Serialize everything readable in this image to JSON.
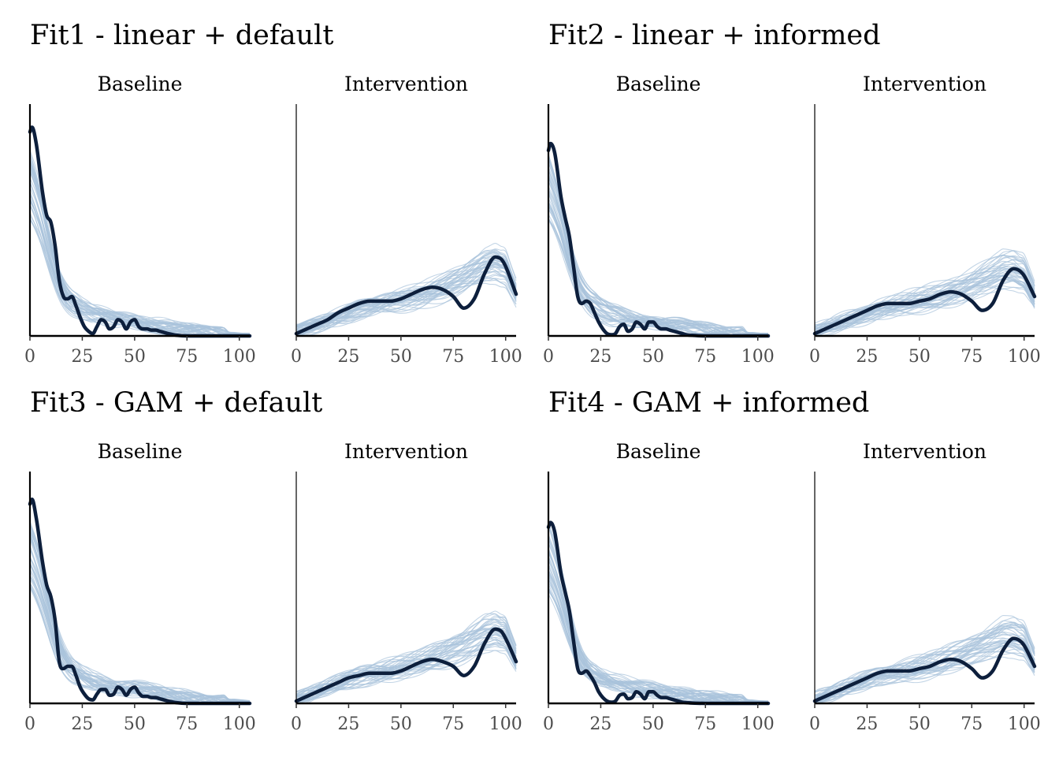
{
  "chart_data": [
    {
      "type": "line",
      "title": "Fit1 - linear + default",
      "panels": [
        {
          "label": "Baseline",
          "xlim": [
            0,
            105
          ],
          "ylim": [
            0,
            1
          ],
          "xticks": [
            "0",
            "25",
            "50",
            "75",
            "100"
          ],
          "observed": {
            "x": [
              0,
              1,
              3,
              6,
              8,
              10,
              12,
              14,
              16,
              18,
              20,
              22,
              24,
              26,
              28,
              30,
              32,
              34,
              36,
              38,
              40,
              42,
              44,
              46,
              48,
              50,
              52,
              54,
              56,
              58,
              60,
              62,
              64,
              66,
              70,
              75,
              80,
              85,
              90,
              95,
              100,
              105
            ],
            "y": [
              0.88,
              0.9,
              0.83,
              0.62,
              0.52,
              0.49,
              0.39,
              0.24,
              0.17,
              0.16,
              0.17,
              0.13,
              0.08,
              0.04,
              0.02,
              0.01,
              0.04,
              0.07,
              0.06,
              0.03,
              0.04,
              0.07,
              0.06,
              0.03,
              0.06,
              0.07,
              0.04,
              0.03,
              0.03,
              0.025,
              0.025,
              0.02,
              0.015,
              0.01,
              0.003,
              0.0,
              0.0,
              0.0,
              0.0,
              0.0,
              0.0,
              0.0
            ]
          },
          "replicates": {
            "x": [
              0,
              2,
              5,
              8,
              11,
              14,
              17,
              20,
              25,
              30,
              40,
              50,
              60,
              70,
              80,
              90,
              100,
              105
            ],
            "y": [
              0.62,
              0.58,
              0.5,
              0.4,
              0.3,
              0.22,
              0.17,
              0.14,
              0.11,
              0.09,
              0.07,
              0.06,
              0.045,
              0.03,
              0.02,
              0.012,
              0.006,
              0.003
            ]
          }
        },
        {
          "label": "Intervention",
          "xlim": [
            0,
            105
          ],
          "ylim": [
            0,
            1
          ],
          "xticks": [
            "0",
            "25",
            "50",
            "75",
            "100"
          ],
          "observed": {
            "x": [
              0,
              5,
              10,
              15,
              20,
              25,
              30,
              35,
              40,
              45,
              50,
              55,
              60,
              65,
              70,
              75,
              80,
              85,
              90,
              95,
              98,
              100,
              105
            ],
            "y": [
              0.01,
              0.03,
              0.05,
              0.07,
              0.1,
              0.12,
              0.14,
              0.15,
              0.15,
              0.15,
              0.16,
              0.18,
              0.2,
              0.21,
              0.2,
              0.17,
              0.12,
              0.16,
              0.27,
              0.34,
              0.33,
              0.3,
              0.18
            ]
          },
          "replicates": {
            "x": [
              0,
              10,
              20,
              30,
              40,
              50,
              60,
              70,
              80,
              90,
              95,
              100,
              105
            ],
            "y": [
              0.02,
              0.05,
              0.08,
              0.11,
              0.13,
              0.15,
              0.17,
              0.2,
              0.24,
              0.29,
              0.3,
              0.28,
              0.18
            ]
          }
        }
      ]
    },
    {
      "type": "line",
      "title": "Fit2 - linear + informed",
      "panels": [
        {
          "label": "Baseline",
          "xlim": [
            0,
            105
          ],
          "ylim": [
            0,
            1
          ],
          "xticks": [
            "0",
            "25",
            "50",
            "75",
            "100"
          ],
          "observed": {
            "x": [
              0,
              1,
              3,
              6,
              8,
              10,
              12,
              14,
              16,
              18,
              20,
              22,
              24,
              26,
              28,
              30,
              32,
              34,
              36,
              38,
              40,
              42,
              44,
              46,
              48,
              50,
              52,
              54,
              56,
              58,
              60,
              62,
              64,
              66,
              70,
              75,
              80,
              85,
              90,
              95,
              100,
              105
            ],
            "y": [
              0.8,
              0.83,
              0.79,
              0.6,
              0.51,
              0.43,
              0.3,
              0.17,
              0.14,
              0.15,
              0.14,
              0.1,
              0.06,
              0.03,
              0.01,
              0.005,
              0.01,
              0.04,
              0.05,
              0.02,
              0.03,
              0.06,
              0.05,
              0.03,
              0.06,
              0.06,
              0.04,
              0.03,
              0.03,
              0.025,
              0.02,
              0.015,
              0.01,
              0.005,
              0.002,
              0.0,
              0.0,
              0.0,
              0.0,
              0.0,
              0.0,
              0.0
            ]
          },
          "replicates": {
            "x": [
              0,
              2,
              5,
              8,
              11,
              14,
              17,
              20,
              25,
              30,
              40,
              50,
              60,
              70,
              80,
              90,
              100,
              105
            ],
            "y": [
              0.62,
              0.58,
              0.5,
              0.4,
              0.3,
              0.22,
              0.17,
              0.14,
              0.11,
              0.09,
              0.07,
              0.06,
              0.045,
              0.03,
              0.02,
              0.012,
              0.006,
              0.003
            ]
          }
        },
        {
          "label": "Intervention",
          "xlim": [
            0,
            105
          ],
          "ylim": [
            0,
            1
          ],
          "xticks": [
            "0",
            "25",
            "50",
            "75",
            "100"
          ],
          "observed": {
            "x": [
              0,
              5,
              10,
              15,
              20,
              25,
              30,
              35,
              40,
              45,
              50,
              55,
              60,
              65,
              70,
              75,
              80,
              85,
              90,
              95,
              98,
              100,
              105
            ],
            "y": [
              0.01,
              0.03,
              0.05,
              0.07,
              0.09,
              0.11,
              0.13,
              0.14,
              0.14,
              0.14,
              0.15,
              0.16,
              0.18,
              0.19,
              0.18,
              0.15,
              0.11,
              0.14,
              0.24,
              0.29,
              0.28,
              0.26,
              0.17
            ]
          },
          "replicates": {
            "x": [
              0,
              10,
              20,
              30,
              40,
              50,
              60,
              70,
              80,
              90,
              95,
              100,
              105
            ],
            "y": [
              0.02,
              0.05,
              0.08,
              0.11,
              0.13,
              0.15,
              0.17,
              0.2,
              0.24,
              0.28,
              0.28,
              0.26,
              0.17
            ]
          }
        }
      ]
    },
    {
      "type": "line",
      "title": "Fit3 - GAM + default",
      "panels": [
        {
          "label": "Baseline",
          "xlim": [
            0,
            105
          ],
          "ylim": [
            0,
            1
          ],
          "xticks": [
            "0",
            "25",
            "50",
            "75",
            "100"
          ],
          "observed": {
            "x": [
              0,
              1,
              3,
              6,
              8,
              10,
              12,
              14,
              16,
              18,
              20,
              22,
              24,
              26,
              28,
              30,
              32,
              34,
              36,
              38,
              40,
              42,
              44,
              46,
              48,
              50,
              52,
              54,
              56,
              58,
              60,
              62,
              64,
              66,
              70,
              75,
              80,
              85,
              90,
              95,
              100,
              105
            ],
            "y": [
              0.86,
              0.88,
              0.8,
              0.61,
              0.51,
              0.46,
              0.36,
              0.18,
              0.15,
              0.16,
              0.16,
              0.12,
              0.07,
              0.04,
              0.02,
              0.015,
              0.04,
              0.06,
              0.06,
              0.035,
              0.04,
              0.07,
              0.06,
              0.035,
              0.06,
              0.07,
              0.045,
              0.03,
              0.03,
              0.025,
              0.025,
              0.02,
              0.015,
              0.01,
              0.003,
              0.0,
              0.0,
              0.0,
              0.0,
              0.0,
              0.0,
              0.0
            ]
          },
          "replicates": {
            "x": [
              0,
              2,
              5,
              8,
              11,
              14,
              17,
              20,
              25,
              30,
              40,
              50,
              60,
              70,
              80,
              90,
              100,
              105
            ],
            "y": [
              0.62,
              0.58,
              0.5,
              0.4,
              0.3,
              0.22,
              0.17,
              0.14,
              0.11,
              0.09,
              0.07,
              0.06,
              0.045,
              0.03,
              0.02,
              0.012,
              0.006,
              0.003
            ]
          }
        },
        {
          "label": "Intervention",
          "xlim": [
            0,
            105
          ],
          "ylim": [
            0,
            1
          ],
          "xticks": [
            "0",
            "25",
            "50",
            "75",
            "100"
          ],
          "observed": {
            "x": [
              0,
              5,
              10,
              15,
              20,
              25,
              30,
              35,
              40,
              45,
              50,
              55,
              60,
              65,
              70,
              75,
              80,
              85,
              90,
              95,
              98,
              100,
              105
            ],
            "y": [
              0.01,
              0.03,
              0.05,
              0.07,
              0.09,
              0.11,
              0.12,
              0.13,
              0.13,
              0.13,
              0.14,
              0.16,
              0.18,
              0.19,
              0.18,
              0.16,
              0.12,
              0.16,
              0.26,
              0.32,
              0.31,
              0.28,
              0.18
            ]
          },
          "replicates": {
            "x": [
              0,
              10,
              20,
              30,
              40,
              50,
              60,
              70,
              80,
              90,
              95,
              100,
              105
            ],
            "y": [
              0.02,
              0.05,
              0.08,
              0.11,
              0.13,
              0.15,
              0.17,
              0.2,
              0.24,
              0.29,
              0.3,
              0.28,
              0.18
            ]
          }
        }
      ]
    },
    {
      "type": "line",
      "title": "Fit4 - GAM + informed",
      "panels": [
        {
          "label": "Baseline",
          "xlim": [
            0,
            105
          ],
          "ylim": [
            0,
            1
          ],
          "xticks": [
            "0",
            "25",
            "50",
            "75",
            "100"
          ],
          "observed": {
            "x": [
              0,
              1,
              3,
              6,
              8,
              10,
              12,
              14,
              16,
              18,
              20,
              22,
              24,
              26,
              28,
              30,
              32,
              34,
              36,
              38,
              40,
              42,
              44,
              46,
              48,
              50,
              52,
              54,
              56,
              58,
              60,
              62,
              64,
              66,
              70,
              75,
              80,
              85,
              90,
              95,
              100,
              105
            ],
            "y": [
              0.76,
              0.78,
              0.74,
              0.56,
              0.48,
              0.4,
              0.27,
              0.15,
              0.13,
              0.14,
              0.12,
              0.09,
              0.05,
              0.025,
              0.01,
              0.005,
              0.01,
              0.035,
              0.04,
              0.02,
              0.025,
              0.05,
              0.04,
              0.02,
              0.05,
              0.05,
              0.035,
              0.025,
              0.025,
              0.02,
              0.015,
              0.01,
              0.005,
              0.003,
              0.001,
              0.0,
              0.0,
              0.0,
              0.0,
              0.0,
              0.0,
              0.0
            ]
          },
          "replicates": {
            "x": [
              0,
              2,
              5,
              8,
              11,
              14,
              17,
              20,
              25,
              30,
              40,
              50,
              60,
              70,
              80,
              90,
              100,
              105
            ],
            "y": [
              0.62,
              0.58,
              0.5,
              0.4,
              0.3,
              0.22,
              0.17,
              0.14,
              0.11,
              0.09,
              0.07,
              0.06,
              0.045,
              0.03,
              0.02,
              0.012,
              0.006,
              0.003
            ]
          }
        },
        {
          "label": "Intervention",
          "xlim": [
            0,
            105
          ],
          "ylim": [
            0,
            1
          ],
          "xticks": [
            "0",
            "25",
            "50",
            "75",
            "100"
          ],
          "observed": {
            "x": [
              0,
              5,
              10,
              15,
              20,
              25,
              30,
              35,
              40,
              45,
              50,
              55,
              60,
              65,
              70,
              75,
              80,
              85,
              90,
              95,
              98,
              100,
              105
            ],
            "y": [
              0.01,
              0.03,
              0.05,
              0.07,
              0.09,
              0.11,
              0.13,
              0.14,
              0.14,
              0.14,
              0.15,
              0.16,
              0.18,
              0.19,
              0.18,
              0.15,
              0.11,
              0.14,
              0.23,
              0.28,
              0.27,
              0.25,
              0.16
            ]
          },
          "replicates": {
            "x": [
              0,
              10,
              20,
              30,
              40,
              50,
              60,
              70,
              80,
              90,
              95,
              100,
              105
            ],
            "y": [
              0.02,
              0.05,
              0.08,
              0.11,
              0.13,
              0.15,
              0.17,
              0.2,
              0.24,
              0.28,
              0.28,
              0.26,
              0.17
            ]
          }
        }
      ]
    }
  ],
  "colors": {
    "observed": "#0d1f3c",
    "replicates": "#a9c3dc",
    "axis": "#000000",
    "tick_label": "#4d4d4d"
  }
}
